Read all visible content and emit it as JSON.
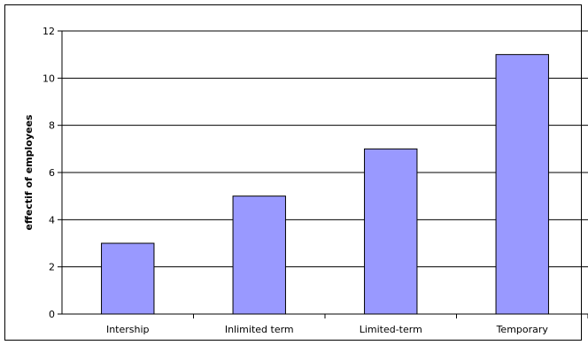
{
  "chart_data": {
    "type": "bar",
    "title": "",
    "xlabel": "",
    "ylabel": "effectif of employees",
    "categories": [
      "Intership",
      "Inlimited term",
      "Limited-term",
      "Temporary"
    ],
    "values": [
      3,
      5,
      7,
      11
    ],
    "ylim": [
      0,
      12
    ],
    "yticks": [
      "0",
      "2",
      "4",
      "6",
      "8",
      "10",
      "12"
    ],
    "grid": true,
    "legend": "none",
    "colors": {
      "bar_fill": "#9999ff",
      "bar_stroke": "#000000",
      "grid": "#000000",
      "background": "#ffffff"
    }
  }
}
